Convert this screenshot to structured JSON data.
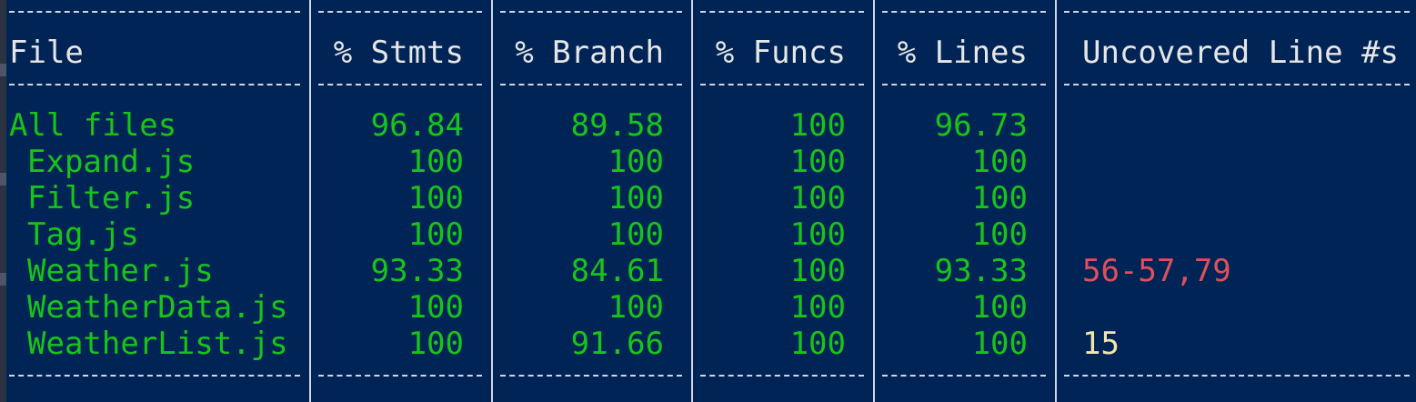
{
  "table": {
    "headers": {
      "file": "File",
      "stmts": "% Stmts",
      "branch": "% Branch",
      "funcs": "% Funcs",
      "lines": "% Lines",
      "uncovered": "Uncovered Line #s"
    },
    "rows": [
      {
        "file": "All files",
        "stmts": "96.84",
        "branch": "89.58",
        "funcs": "100",
        "lines": "96.73",
        "uncovered": ""
      },
      {
        "file": "Expand.js",
        "stmts": "100",
        "branch": "100",
        "funcs": "100",
        "lines": "100",
        "uncovered": ""
      },
      {
        "file": "Filter.js",
        "stmts": "100",
        "branch": "100",
        "funcs": "100",
        "lines": "100",
        "uncovered": ""
      },
      {
        "file": "Tag.js",
        "stmts": "100",
        "branch": "100",
        "funcs": "100",
        "lines": "100",
        "uncovered": ""
      },
      {
        "file": "Weather.js",
        "stmts": "93.33",
        "branch": "84.61",
        "funcs": "100",
        "lines": "93.33",
        "uncovered": "56-57,79"
      },
      {
        "file": "WeatherData.js",
        "stmts": "100",
        "branch": "100",
        "funcs": "100",
        "lines": "100",
        "uncovered": ""
      },
      {
        "file": "WeatherList.js",
        "stmts": "100",
        "branch": "91.66",
        "funcs": "100",
        "lines": "100",
        "uncovered": "15"
      }
    ]
  },
  "colors": {
    "background": "#012456",
    "covered_text": "#19c419",
    "header_text": "#e6e6e6",
    "uncovered_red": "#e0505a",
    "uncovered_yellow": "#f2e6a8",
    "separator": "#cfd6e4"
  }
}
